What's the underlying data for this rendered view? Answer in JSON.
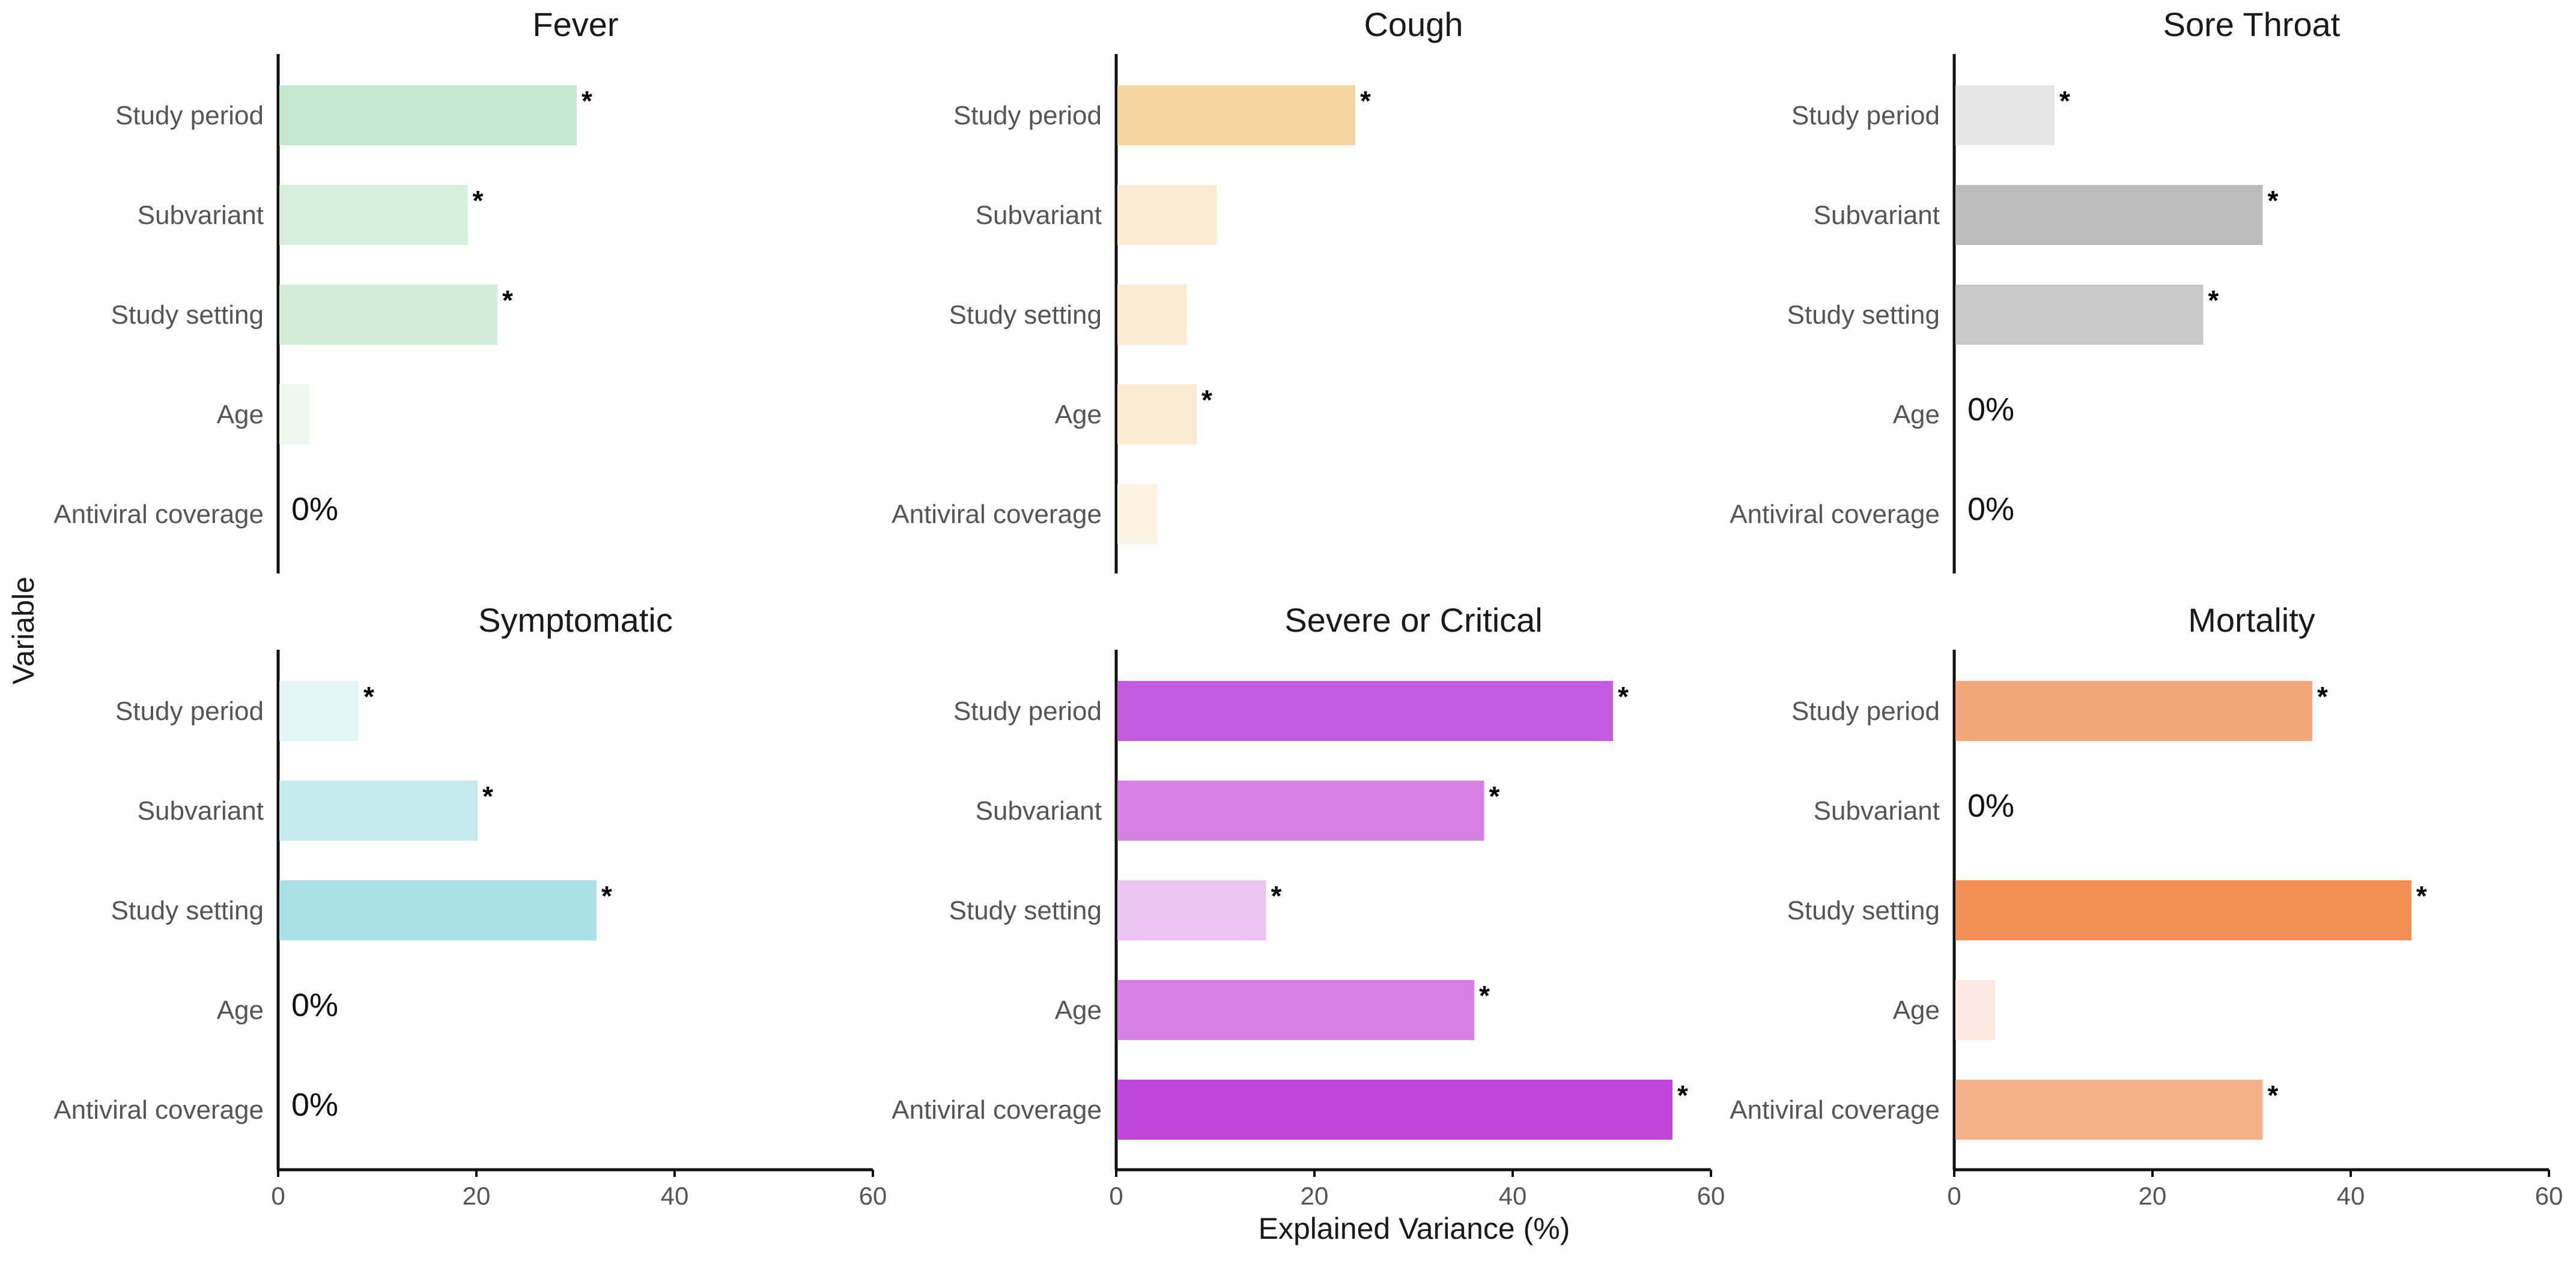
{
  "chart_data": {
    "type": "bar",
    "orientation": "horizontal",
    "xlabel": "Explained Variance (%)",
    "ylabel": "Variable",
    "xlim": [
      0,
      60
    ],
    "xticks": [
      0,
      20,
      40,
      60
    ],
    "xtick_labels": [
      "0",
      "20",
      "40",
      "60"
    ],
    "categories": [
      "Study period",
      "Subvariant",
      "Study setting",
      "Age",
      "Antiviral coverage"
    ],
    "significance_marker": "*",
    "zero_label": "0%",
    "panels": [
      {
        "title": "Fever",
        "values": [
          30,
          19,
          22,
          3,
          0
        ],
        "significant": [
          true,
          true,
          true,
          false,
          false
        ],
        "colors": [
          "#c4e8cc",
          "#d6efdc",
          "#d0ecd6",
          "#eef8f0",
          "#eef8f0"
        ]
      },
      {
        "title": "Cough",
        "values": [
          24,
          10,
          7,
          8,
          4
        ],
        "significant": [
          true,
          false,
          false,
          true,
          false
        ],
        "colors": [
          "#f2d7a0",
          "#fbebd2",
          "#fbebd2",
          "#fbebd2",
          "#fdf3e4"
        ]
      },
      {
        "title": "Sore Throat",
        "values": [
          10,
          31,
          25,
          0,
          0
        ],
        "significant": [
          true,
          true,
          true,
          false,
          false
        ],
        "colors": [
          "#e5e5e5",
          "#bcbcbc",
          "#c9c9c9",
          "#e5e5e5",
          "#e5e5e5"
        ]
      },
      {
        "title": "Symptomatic",
        "values": [
          8,
          20,
          32,
          0,
          0
        ],
        "significant": [
          true,
          true,
          true,
          false,
          false
        ],
        "colors": [
          "#e2f4f6",
          "#c6ebee",
          "#a8e0e6",
          "#e2f4f6",
          "#e2f4f6"
        ]
      },
      {
        "title": "Severe or Critical",
        "values": [
          50,
          37,
          15,
          36,
          56
        ],
        "significant": [
          true,
          true,
          true,
          true,
          true
        ],
        "colors": [
          "#c45ade",
          "#d680e4",
          "#edc5f2",
          "#d680e4",
          "#bf46d8"
        ]
      },
      {
        "title": "Mortality",
        "values": [
          36,
          0,
          46,
          4,
          31
        ],
        "significant": [
          true,
          false,
          true,
          false,
          true
        ],
        "colors": [
          "#f2a67a",
          "#fbe3d5",
          "#f18f55",
          "#fde9df",
          "#f4b18a"
        ]
      }
    ]
  }
}
